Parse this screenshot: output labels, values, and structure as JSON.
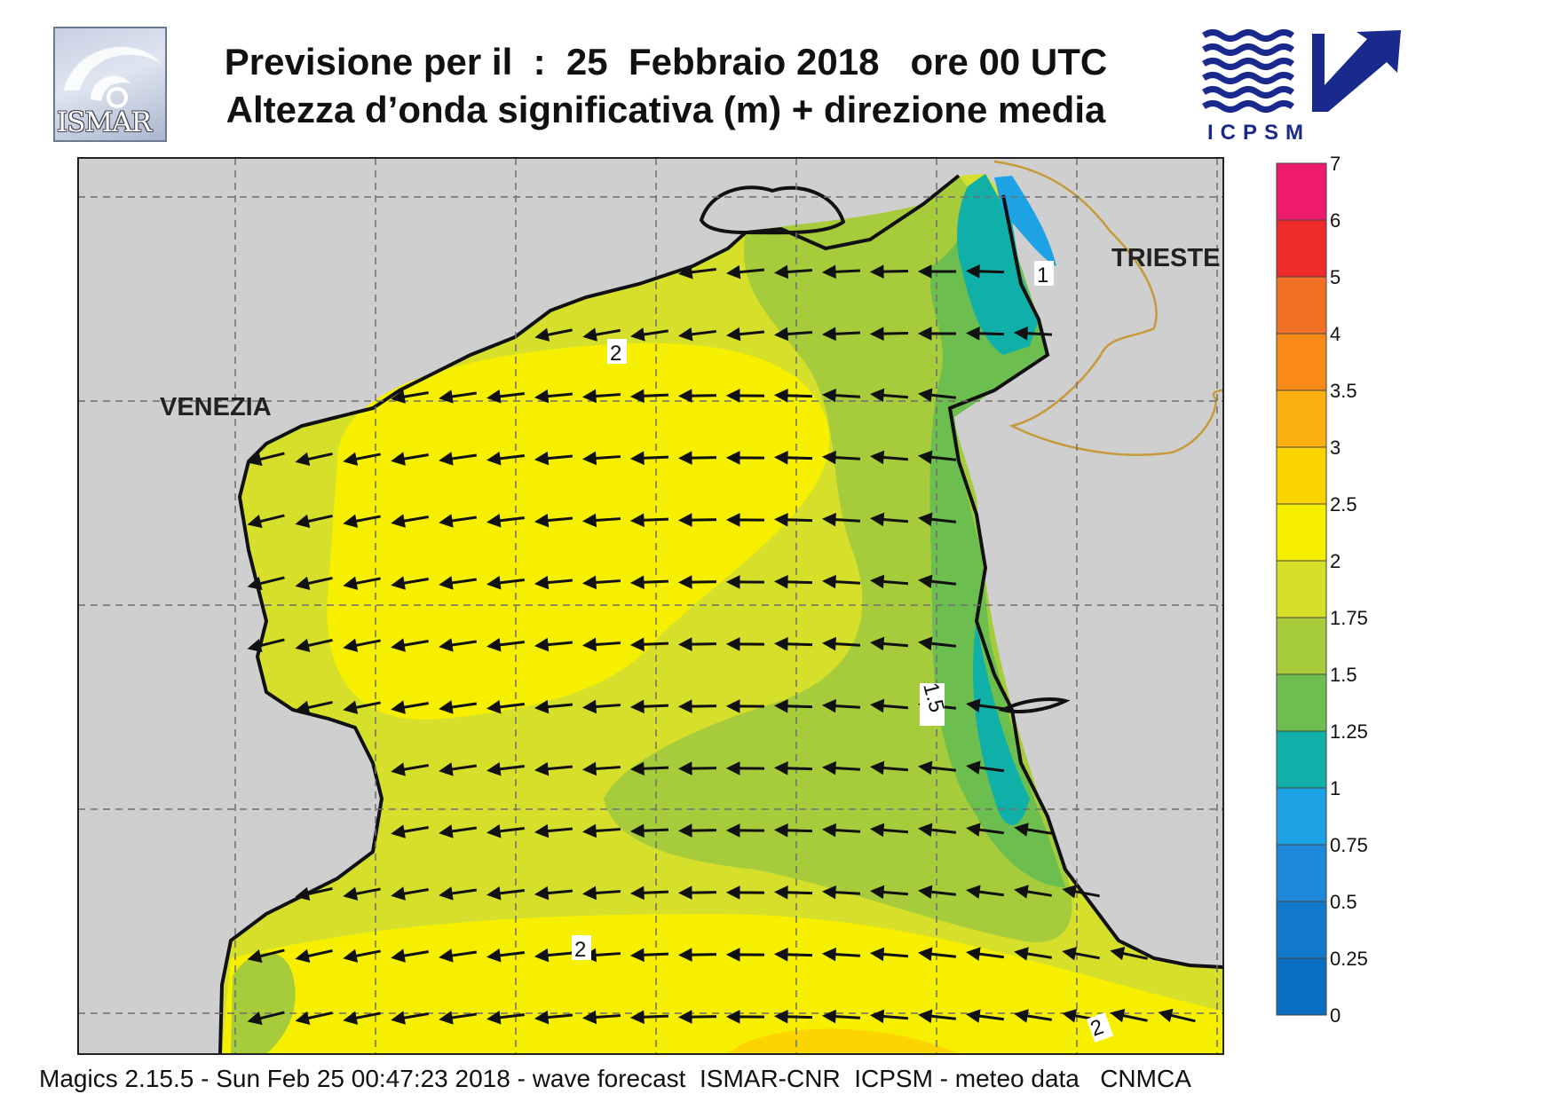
{
  "header": {
    "title_line1": "Previsione per il  :  25  Febbraio 2018   ore 00 UTC",
    "title_line2": "Altezza d’onda significativa (m) + direzione media"
  },
  "logos": {
    "ismar": "ISMAR",
    "icpsm": "ICPSM"
  },
  "map": {
    "place_labels": [
      "VENEZIA",
      "TRIESTE"
    ],
    "contour_labels": [
      "1",
      "2",
      "1.5",
      "2",
      "2"
    ],
    "land_color": "#cfcfcf",
    "mean_direction": "toward west-southwest"
  },
  "legend": {
    "values": [
      "0",
      "0.25",
      "0.5",
      "0.75",
      "1",
      "1.25",
      "1.5",
      "1.75",
      "2",
      "2.5",
      "3",
      "3.5",
      "4",
      "5",
      "6",
      "7"
    ],
    "colors": [
      "#0a6fc2",
      "#1279cc",
      "#1e88d8",
      "#1ea2e6",
      "#10b0a8",
      "#6cbf4e",
      "#a7cc3b",
      "#d6e02a",
      "#f6f000",
      "#fcd500",
      "#fbb012",
      "#f98a1a",
      "#f27024",
      "#ee2a2a",
      "#ee1a6c"
    ]
  },
  "footer": {
    "text": "Magics 2.15.5 - Sun Feb 25 00:47:23 2018 - wave forecast  ISMAR-CNR  ICPSM - meteo data   CNMCA"
  }
}
